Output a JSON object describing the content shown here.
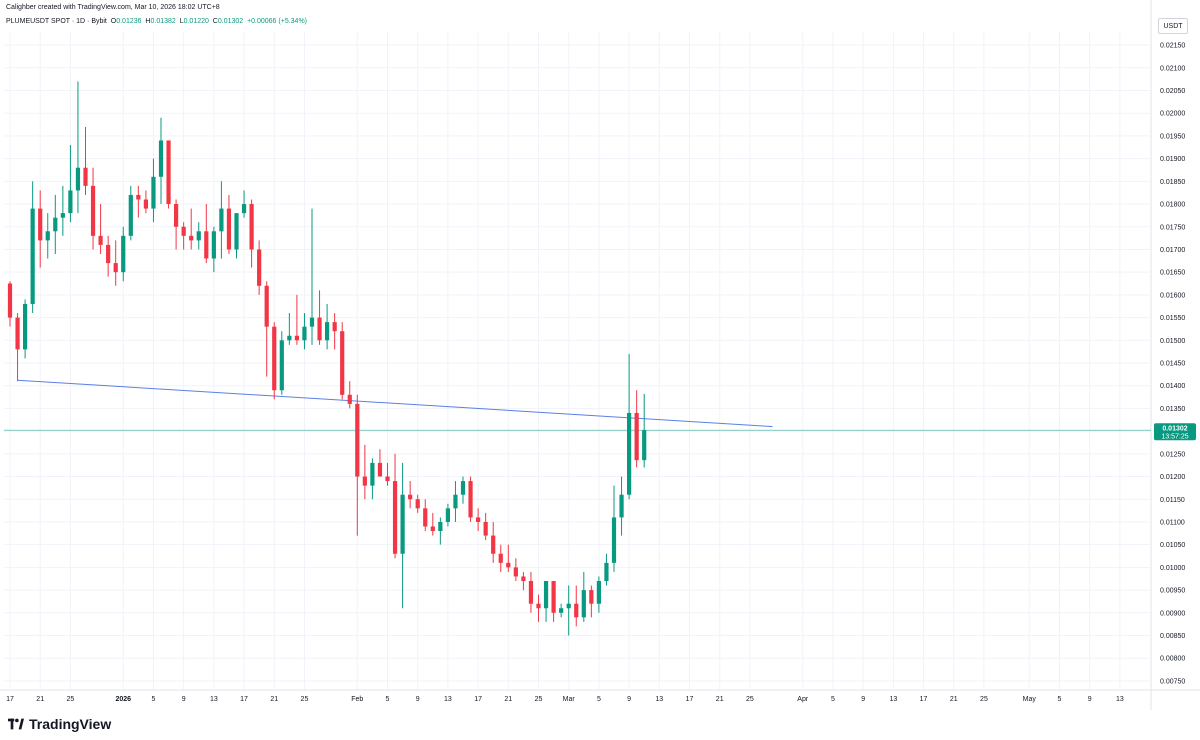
{
  "header": {
    "created_by": "Calighber created with TradingView.com, Mar 10, 2026 18:02 UTC+8",
    "symbol": "PLUMEUSDT SPOT · 1D · Bybit",
    "open_label": "O",
    "open": "0.01236",
    "high_label": "H",
    "high": "0.01382",
    "low_label": "L",
    "low": "0.01220",
    "close_label": "C",
    "close": "0.01302",
    "change": "+0.00066 (+5.34%)"
  },
  "currency_button": "USDT",
  "last_price": {
    "value": "0.01302",
    "countdown": "13:57:25"
  },
  "brand": {
    "name": "TradingView"
  },
  "colors": {
    "up": "#089981",
    "down": "#f23645",
    "trendline": "#5b7fe6",
    "last_price_line": "#089981",
    "grid": "#f0f3fa"
  },
  "chart_data": {
    "type": "candlestick",
    "interval": "1D",
    "ylim": [
      0.0073,
      0.0217
    ],
    "y_ticks": [
      "0.02150",
      "0.02100",
      "0.02050",
      "0.02000",
      "0.01950",
      "0.01900",
      "0.01850",
      "0.01800",
      "0.01750",
      "0.01700",
      "0.01650",
      "0.01600",
      "0.01550",
      "0.01500",
      "0.01450",
      "0.01400",
      "0.01350",
      "0.01300",
      "0.01250",
      "0.01200",
      "0.01150",
      "0.01100",
      "0.01050",
      "0.01000",
      "0.00950",
      "0.00900",
      "0.00850",
      "0.00800",
      "0.00750"
    ],
    "x_ticks": [
      {
        "d": 0,
        "label": "17"
      },
      {
        "d": 4,
        "label": "21"
      },
      {
        "d": 8,
        "label": "25"
      },
      {
        "d": 15,
        "label": "2026",
        "bold": true
      },
      {
        "d": 19,
        "label": "5"
      },
      {
        "d": 23,
        "label": "9"
      },
      {
        "d": 27,
        "label": "13"
      },
      {
        "d": 31,
        "label": "17"
      },
      {
        "d": 35,
        "label": "21"
      },
      {
        "d": 39,
        "label": "25"
      },
      {
        "d": 46,
        "label": "Feb"
      },
      {
        "d": 50,
        "label": "5"
      },
      {
        "d": 54,
        "label": "9"
      },
      {
        "d": 58,
        "label": "13"
      },
      {
        "d": 62,
        "label": "17"
      },
      {
        "d": 66,
        "label": "21"
      },
      {
        "d": 70,
        "label": "25"
      },
      {
        "d": 74,
        "label": "Mar"
      },
      {
        "d": 78,
        "label": "5"
      },
      {
        "d": 82,
        "label": "9"
      },
      {
        "d": 86,
        "label": "13"
      },
      {
        "d": 90,
        "label": "17"
      },
      {
        "d": 94,
        "label": "21"
      },
      {
        "d": 98,
        "label": "25"
      },
      {
        "d": 105,
        "label": "Apr"
      },
      {
        "d": 109,
        "label": "5"
      },
      {
        "d": 113,
        "label": "9"
      },
      {
        "d": 117,
        "label": "13"
      },
      {
        "d": 121,
        "label": "17"
      },
      {
        "d": 125,
        "label": "21"
      },
      {
        "d": 129,
        "label": "25"
      },
      {
        "d": 135,
        "label": "May"
      },
      {
        "d": 139,
        "label": "5"
      },
      {
        "d": 143,
        "label": "9"
      },
      {
        "d": 147,
        "label": "13"
      }
    ],
    "first_date": "2025-12-17",
    "candles": [
      {
        "o": 0.01625,
        "h": 0.0163,
        "l": 0.0153,
        "c": 0.0155
      },
      {
        "o": 0.0155,
        "h": 0.0156,
        "l": 0.0141,
        "c": 0.0148
      },
      {
        "o": 0.0148,
        "h": 0.0159,
        "l": 0.0146,
        "c": 0.0158
      },
      {
        "o": 0.0158,
        "h": 0.0185,
        "l": 0.0156,
        "c": 0.0179
      },
      {
        "o": 0.0179,
        "h": 0.0183,
        "l": 0.0166,
        "c": 0.0172
      },
      {
        "o": 0.0172,
        "h": 0.0178,
        "l": 0.0168,
        "c": 0.0174
      },
      {
        "o": 0.0174,
        "h": 0.0182,
        "l": 0.0169,
        "c": 0.0177
      },
      {
        "o": 0.0177,
        "h": 0.0184,
        "l": 0.0173,
        "c": 0.0178
      },
      {
        "o": 0.0178,
        "h": 0.0193,
        "l": 0.0176,
        "c": 0.0183
      },
      {
        "o": 0.0183,
        "h": 0.0207,
        "l": 0.0178,
        "c": 0.0188
      },
      {
        "o": 0.0188,
        "h": 0.0197,
        "l": 0.0182,
        "c": 0.0184
      },
      {
        "o": 0.0184,
        "h": 0.0188,
        "l": 0.017,
        "c": 0.0173
      },
      {
        "o": 0.0173,
        "h": 0.018,
        "l": 0.0169,
        "c": 0.0171
      },
      {
        "o": 0.0171,
        "h": 0.0173,
        "l": 0.0164,
        "c": 0.0167
      },
      {
        "o": 0.0167,
        "h": 0.0172,
        "l": 0.0162,
        "c": 0.0165
      },
      {
        "o": 0.0165,
        "h": 0.0175,
        "l": 0.0163,
        "c": 0.0173
      },
      {
        "o": 0.0173,
        "h": 0.0184,
        "l": 0.0172,
        "c": 0.0182
      },
      {
        "o": 0.0182,
        "h": 0.0184,
        "l": 0.0177,
        "c": 0.0181
      },
      {
        "o": 0.0181,
        "h": 0.0183,
        "l": 0.0178,
        "c": 0.0179
      },
      {
        "o": 0.0179,
        "h": 0.019,
        "l": 0.0176,
        "c": 0.0186
      },
      {
        "o": 0.0186,
        "h": 0.0199,
        "l": 0.018,
        "c": 0.0194
      },
      {
        "o": 0.0194,
        "h": 0.0194,
        "l": 0.0179,
        "c": 0.018
      },
      {
        "o": 0.018,
        "h": 0.0181,
        "l": 0.017,
        "c": 0.0175
      },
      {
        "o": 0.0175,
        "h": 0.0176,
        "l": 0.017,
        "c": 0.0173
      },
      {
        "o": 0.0173,
        "h": 0.0179,
        "l": 0.017,
        "c": 0.0172
      },
      {
        "o": 0.0172,
        "h": 0.0176,
        "l": 0.017,
        "c": 0.0174
      },
      {
        "o": 0.0174,
        "h": 0.018,
        "l": 0.0167,
        "c": 0.0168
      },
      {
        "o": 0.0168,
        "h": 0.0175,
        "l": 0.0165,
        "c": 0.0174
      },
      {
        "o": 0.0174,
        "h": 0.0185,
        "l": 0.0168,
        "c": 0.0179
      },
      {
        "o": 0.0179,
        "h": 0.0182,
        "l": 0.0169,
        "c": 0.017
      },
      {
        "o": 0.017,
        "h": 0.0178,
        "l": 0.0168,
        "c": 0.0178
      },
      {
        "o": 0.0178,
        "h": 0.0183,
        "l": 0.0177,
        "c": 0.018
      },
      {
        "o": 0.018,
        "h": 0.0181,
        "l": 0.0166,
        "c": 0.017
      },
      {
        "o": 0.017,
        "h": 0.0172,
        "l": 0.016,
        "c": 0.0162
      },
      {
        "o": 0.0162,
        "h": 0.0163,
        "l": 0.0142,
        "c": 0.0153
      },
      {
        "o": 0.0153,
        "h": 0.0154,
        "l": 0.0137,
        "c": 0.0139
      },
      {
        "o": 0.0139,
        "h": 0.0152,
        "l": 0.0138,
        "c": 0.015
      },
      {
        "o": 0.015,
        "h": 0.0156,
        "l": 0.0149,
        "c": 0.0151
      },
      {
        "o": 0.0151,
        "h": 0.016,
        "l": 0.0149,
        "c": 0.015
      },
      {
        "o": 0.015,
        "h": 0.0156,
        "l": 0.0148,
        "c": 0.0153
      },
      {
        "o": 0.0153,
        "h": 0.0179,
        "l": 0.0149,
        "c": 0.0155
      },
      {
        "o": 0.0155,
        "h": 0.0161,
        "l": 0.0149,
        "c": 0.015
      },
      {
        "o": 0.015,
        "h": 0.0158,
        "l": 0.0148,
        "c": 0.0154
      },
      {
        "o": 0.0154,
        "h": 0.0156,
        "l": 0.0148,
        "c": 0.0152
      },
      {
        "o": 0.0152,
        "h": 0.0154,
        "l": 0.0137,
        "c": 0.0138
      },
      {
        "o": 0.0138,
        "h": 0.0141,
        "l": 0.0135,
        "c": 0.0136
      },
      {
        "o": 0.0136,
        "h": 0.0138,
        "l": 0.0107,
        "c": 0.012
      },
      {
        "o": 0.012,
        "h": 0.0127,
        "l": 0.0115,
        "c": 0.0118
      },
      {
        "o": 0.0118,
        "h": 0.0124,
        "l": 0.0115,
        "c": 0.0123
      },
      {
        "o": 0.0123,
        "h": 0.0126,
        "l": 0.012,
        "c": 0.012
      },
      {
        "o": 0.012,
        "h": 0.0123,
        "l": 0.0118,
        "c": 0.0119
      },
      {
        "o": 0.0119,
        "h": 0.0125,
        "l": 0.0102,
        "c": 0.0103
      },
      {
        "o": 0.0103,
        "h": 0.0123,
        "l": 0.0091,
        "c": 0.0116
      },
      {
        "o": 0.0116,
        "h": 0.0119,
        "l": 0.0113,
        "c": 0.0115
      },
      {
        "o": 0.0115,
        "h": 0.0116,
        "l": 0.0112,
        "c": 0.0113
      },
      {
        "o": 0.0113,
        "h": 0.0115,
        "l": 0.0108,
        "c": 0.0109
      },
      {
        "o": 0.0109,
        "h": 0.0112,
        "l": 0.0107,
        "c": 0.0108
      },
      {
        "o": 0.0108,
        "h": 0.0111,
        "l": 0.0105,
        "c": 0.011
      },
      {
        "o": 0.011,
        "h": 0.0114,
        "l": 0.0109,
        "c": 0.0113
      },
      {
        "o": 0.0113,
        "h": 0.0119,
        "l": 0.011,
        "c": 0.0116
      },
      {
        "o": 0.0116,
        "h": 0.012,
        "l": 0.0114,
        "c": 0.0119
      },
      {
        "o": 0.0119,
        "h": 0.012,
        "l": 0.011,
        "c": 0.0111
      },
      {
        "o": 0.0111,
        "h": 0.0113,
        "l": 0.0108,
        "c": 0.011
      },
      {
        "o": 0.011,
        "h": 0.0112,
        "l": 0.0106,
        "c": 0.0107
      },
      {
        "o": 0.0107,
        "h": 0.011,
        "l": 0.0101,
        "c": 0.0103
      },
      {
        "o": 0.0103,
        "h": 0.0105,
        "l": 0.0099,
        "c": 0.0101
      },
      {
        "o": 0.0101,
        "h": 0.0105,
        "l": 0.0099,
        "c": 0.01
      },
      {
        "o": 0.01,
        "h": 0.0102,
        "l": 0.0097,
        "c": 0.0098
      },
      {
        "o": 0.0098,
        "h": 0.0099,
        "l": 0.0095,
        "c": 0.0097
      },
      {
        "o": 0.0097,
        "h": 0.0099,
        "l": 0.009,
        "c": 0.0092
      },
      {
        "o": 0.0092,
        "h": 0.0094,
        "l": 0.0088,
        "c": 0.0091
      },
      {
        "o": 0.0091,
        "h": 0.0097,
        "l": 0.0088,
        "c": 0.0097
      },
      {
        "o": 0.0097,
        "h": 0.0097,
        "l": 0.0088,
        "c": 0.009
      },
      {
        "o": 0.009,
        "h": 0.0092,
        "l": 0.0089,
        "c": 0.0091
      },
      {
        "o": 0.0091,
        "h": 0.0096,
        "l": 0.0085,
        "c": 0.0092
      },
      {
        "o": 0.0092,
        "h": 0.0096,
        "l": 0.0087,
        "c": 0.0089
      },
      {
        "o": 0.0089,
        "h": 0.0099,
        "l": 0.0088,
        "c": 0.0095
      },
      {
        "o": 0.0095,
        "h": 0.0096,
        "l": 0.0089,
        "c": 0.0092
      },
      {
        "o": 0.0092,
        "h": 0.0098,
        "l": 0.009,
        "c": 0.0097
      },
      {
        "o": 0.0097,
        "h": 0.0103,
        "l": 0.0096,
        "c": 0.0101
      },
      {
        "o": 0.0101,
        "h": 0.0118,
        "l": 0.0099,
        "c": 0.0111
      },
      {
        "o": 0.0111,
        "h": 0.012,
        "l": 0.0107,
        "c": 0.0116
      },
      {
        "o": 0.0116,
        "h": 0.0147,
        "l": 0.0115,
        "c": 0.0134
      },
      {
        "o": 0.0134,
        "h": 0.0139,
        "l": 0.0122,
        "c": 0.01236
      },
      {
        "o": 0.01236,
        "h": 0.01382,
        "l": 0.0122,
        "c": 0.01302
      }
    ],
    "trendline": {
      "from": {
        "d": 1,
        "y": 0.01412
      },
      "to": {
        "d": 101,
        "y": 0.0131
      }
    },
    "last_price": 0.01302
  }
}
